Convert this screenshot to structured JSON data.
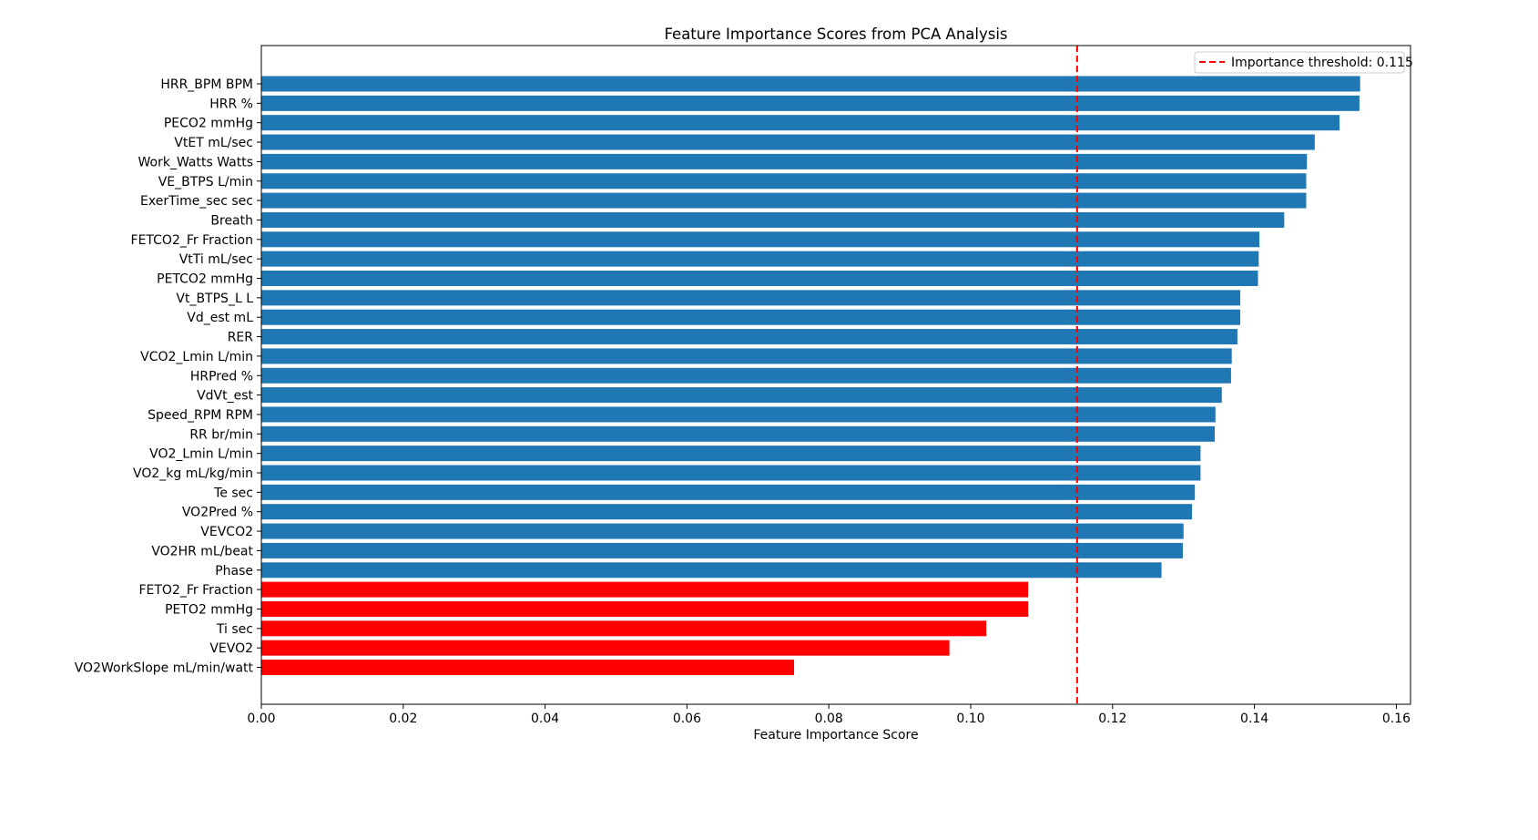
{
  "chart_data": {
    "type": "bar",
    "orientation": "horizontal",
    "title": "Feature Importance Scores from PCA Analysis",
    "xlabel": "Feature Importance Score",
    "ylabel": "",
    "xlim": [
      0,
      0.162
    ],
    "xticks": [
      "0.00",
      "0.02",
      "0.04",
      "0.06",
      "0.08",
      "0.10",
      "0.12",
      "0.14",
      "0.16"
    ],
    "grid": false,
    "legend_position": "top-right",
    "threshold": {
      "value": 0.115,
      "label": "Importance threshold: 0.115",
      "color": "#ff0000",
      "style": "dashed"
    },
    "colors": {
      "above_threshold": "#1f77b4",
      "below_threshold": "#ff0000"
    },
    "categories": [
      "HRR_BPM BPM",
      "HRR %",
      "PECO2 mmHg",
      "VtET mL/sec",
      "Work_Watts Watts",
      "VE_BTPS L/min",
      "ExerTime_sec sec",
      "Breath",
      "FETCO2_Fr Fraction",
      "VtTi mL/sec",
      "PETCO2 mmHg",
      "Vt_BTPS_L L",
      "Vd_est mL",
      "RER",
      "VCO2_Lmin L/min",
      "HRPred %",
      "VdVt_est",
      "Speed_RPM RPM",
      "RR br/min",
      "VO2_Lmin L/min",
      "VO2_kg mL/kg/min",
      "Te sec",
      "VO2Pred %",
      "VEVCO2",
      "VO2HR mL/beat",
      "Phase",
      "FETO2_Fr Fraction",
      "PETO2 mmHg",
      "Ti sec",
      "VEVO2",
      "VO2WorkSlope mL/min/watt"
    ],
    "values": [
      0.1549,
      0.1548,
      0.152,
      0.1485,
      0.1474,
      0.1473,
      0.1473,
      0.1442,
      0.1407,
      0.1406,
      0.1405,
      0.138,
      0.138,
      0.1376,
      0.1368,
      0.1367,
      0.1354,
      0.1345,
      0.1344,
      0.1324,
      0.1324,
      0.1316,
      0.1312,
      0.13,
      0.1299,
      0.1269,
      0.1081,
      0.1081,
      0.1022,
      0.097,
      0.0751
    ]
  }
}
